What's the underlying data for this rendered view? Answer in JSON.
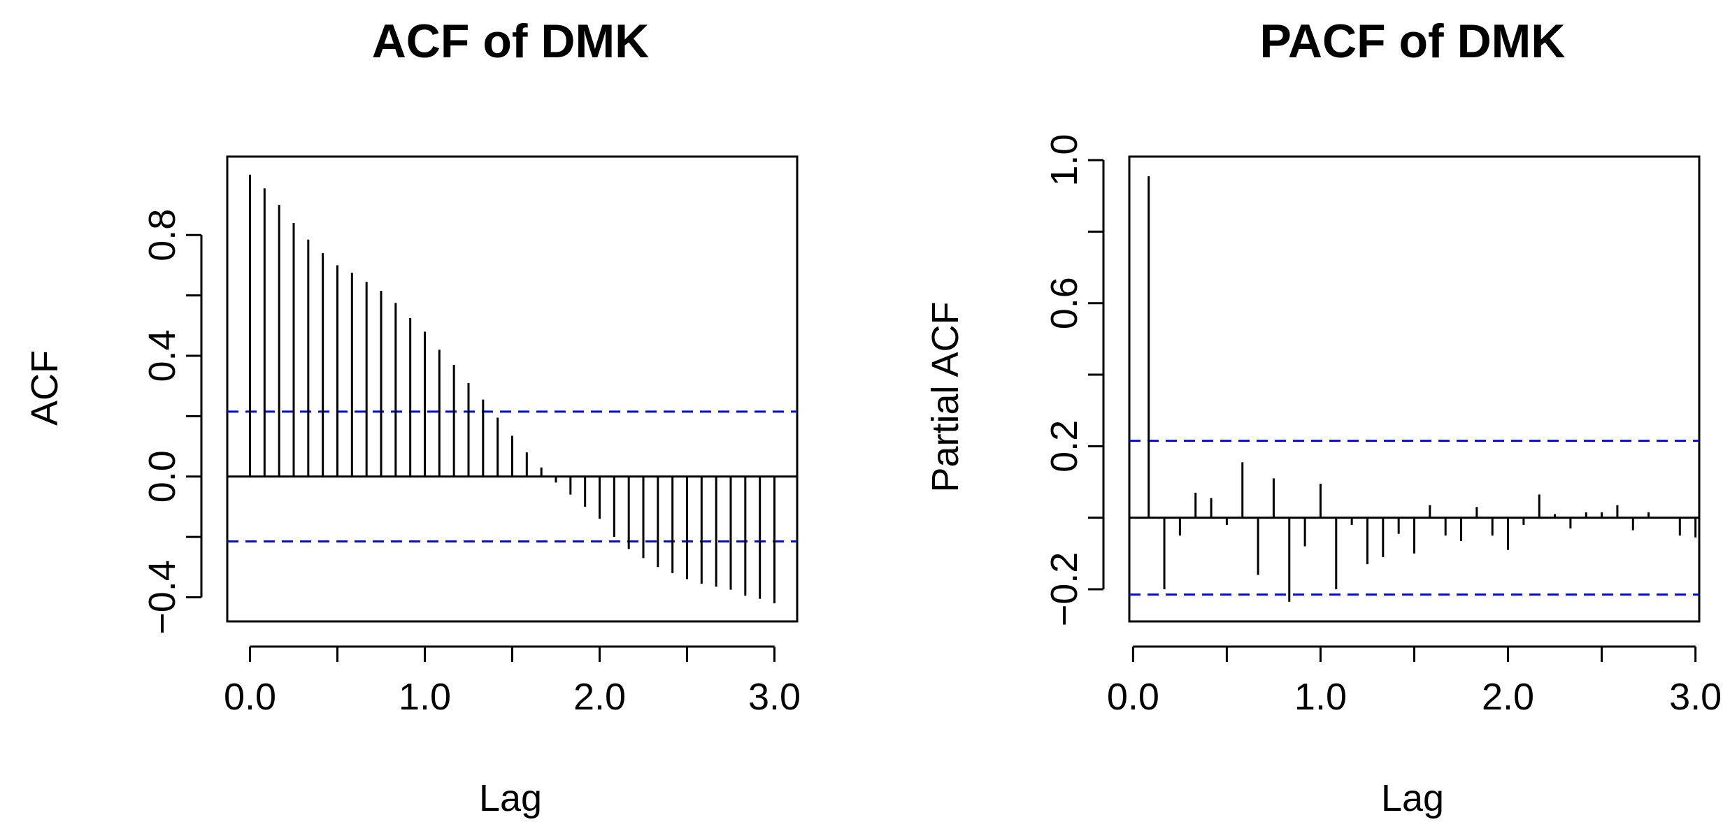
{
  "chart_data": [
    {
      "type": "bar",
      "title": "ACF of DMK",
      "xlabel": "Lag",
      "ylabel": "ACF",
      "xlim": [
        -0.13,
        3.13
      ],
      "ylim": [
        -0.48,
        1.06
      ],
      "x_ticks": [
        {
          "value": 0.0,
          "label": "0.0"
        },
        {
          "value": 0.5,
          "label": ""
        },
        {
          "value": 1.0,
          "label": "1.0"
        },
        {
          "value": 1.5,
          "label": ""
        },
        {
          "value": 2.0,
          "label": "2.0"
        },
        {
          "value": 2.5,
          "label": ""
        },
        {
          "value": 3.0,
          "label": "3.0"
        }
      ],
      "y_ticks": [
        {
          "value": -0.4,
          "label": "−0.4"
        },
        {
          "value": -0.2,
          "label": ""
        },
        {
          "value": 0.0,
          "label": "0.0"
        },
        {
          "value": 0.2,
          "label": ""
        },
        {
          "value": 0.4,
          "label": "0.4"
        },
        {
          "value": 0.6,
          "label": ""
        },
        {
          "value": 0.8,
          "label": "0.8"
        }
      ],
      "confidence_bounds": [
        0.215,
        -0.215
      ],
      "lags": [
        0.0,
        0.0833,
        0.1667,
        0.25,
        0.3333,
        0.4167,
        0.5,
        0.5833,
        0.6667,
        0.75,
        0.8333,
        0.9167,
        1.0,
        1.0833,
        1.1667,
        1.25,
        1.3333,
        1.4167,
        1.5,
        1.5833,
        1.6667,
        1.75,
        1.8333,
        1.9167,
        2.0,
        2.0833,
        2.1667,
        2.25,
        2.3333,
        2.4167,
        2.5,
        2.5833,
        2.6667,
        2.75,
        2.8333,
        2.9167,
        3.0
      ],
      "values": [
        1.0,
        0.955,
        0.9,
        0.84,
        0.785,
        0.74,
        0.7,
        0.675,
        0.645,
        0.615,
        0.575,
        0.525,
        0.48,
        0.42,
        0.37,
        0.31,
        0.255,
        0.195,
        0.135,
        0.08,
        0.03,
        -0.02,
        -0.06,
        -0.1,
        -0.14,
        -0.2,
        -0.24,
        -0.27,
        -0.3,
        -0.32,
        -0.34,
        -0.355,
        -0.365,
        -0.375,
        -0.395,
        -0.405,
        -0.42
      ],
      "grid": false
    },
    {
      "type": "bar",
      "title": "PACF of DMK",
      "xlabel": "Lag",
      "ylabel": "Partial ACF",
      "xlim": [
        -0.02,
        3.02
      ],
      "ylim": [
        -0.29,
        1.01
      ],
      "x_ticks": [
        {
          "value": 0.0,
          "label": "0.0"
        },
        {
          "value": 0.5,
          "label": ""
        },
        {
          "value": 1.0,
          "label": "1.0"
        },
        {
          "value": 1.5,
          "label": ""
        },
        {
          "value": 2.0,
          "label": "2.0"
        },
        {
          "value": 2.5,
          "label": ""
        },
        {
          "value": 3.0,
          "label": "3.0"
        }
      ],
      "y_ticks": [
        {
          "value": -0.2,
          "label": "−0.2"
        },
        {
          "value": 0.0,
          "label": ""
        },
        {
          "value": 0.2,
          "label": "0.2"
        },
        {
          "value": 0.4,
          "label": ""
        },
        {
          "value": 0.6,
          "label": "0.6"
        },
        {
          "value": 0.8,
          "label": ""
        },
        {
          "value": 1.0,
          "label": "1.0"
        }
      ],
      "confidence_bounds": [
        0.215,
        -0.215
      ],
      "lags": [
        0.0833,
        0.1667,
        0.25,
        0.3333,
        0.4167,
        0.5,
        0.5833,
        0.6667,
        0.75,
        0.8333,
        0.9167,
        1.0,
        1.0833,
        1.1667,
        1.25,
        1.3333,
        1.4167,
        1.5,
        1.5833,
        1.6667,
        1.75,
        1.8333,
        1.9167,
        2.0,
        2.0833,
        2.1667,
        2.25,
        2.3333,
        2.4167,
        2.5,
        2.5833,
        2.6667,
        2.75,
        2.8333,
        2.9167,
        3.0
      ],
      "values": [
        0.955,
        -0.2,
        -0.05,
        0.07,
        0.055,
        -0.02,
        0.155,
        -0.16,
        0.11,
        -0.235,
        -0.08,
        0.095,
        -0.2,
        -0.02,
        -0.13,
        -0.11,
        -0.045,
        -0.1,
        0.035,
        -0.05,
        -0.065,
        0.03,
        -0.05,
        -0.09,
        -0.02,
        0.065,
        0.01,
        -0.03,
        0.015,
        0.015,
        0.035,
        -0.035,
        0.015,
        0.0,
        -0.05,
        -0.055
      ],
      "grid": false
    }
  ],
  "colors": {
    "bars": "#000000",
    "axes": "#000000",
    "confidence_line": "#0000ff",
    "background": "#ffffff"
  }
}
